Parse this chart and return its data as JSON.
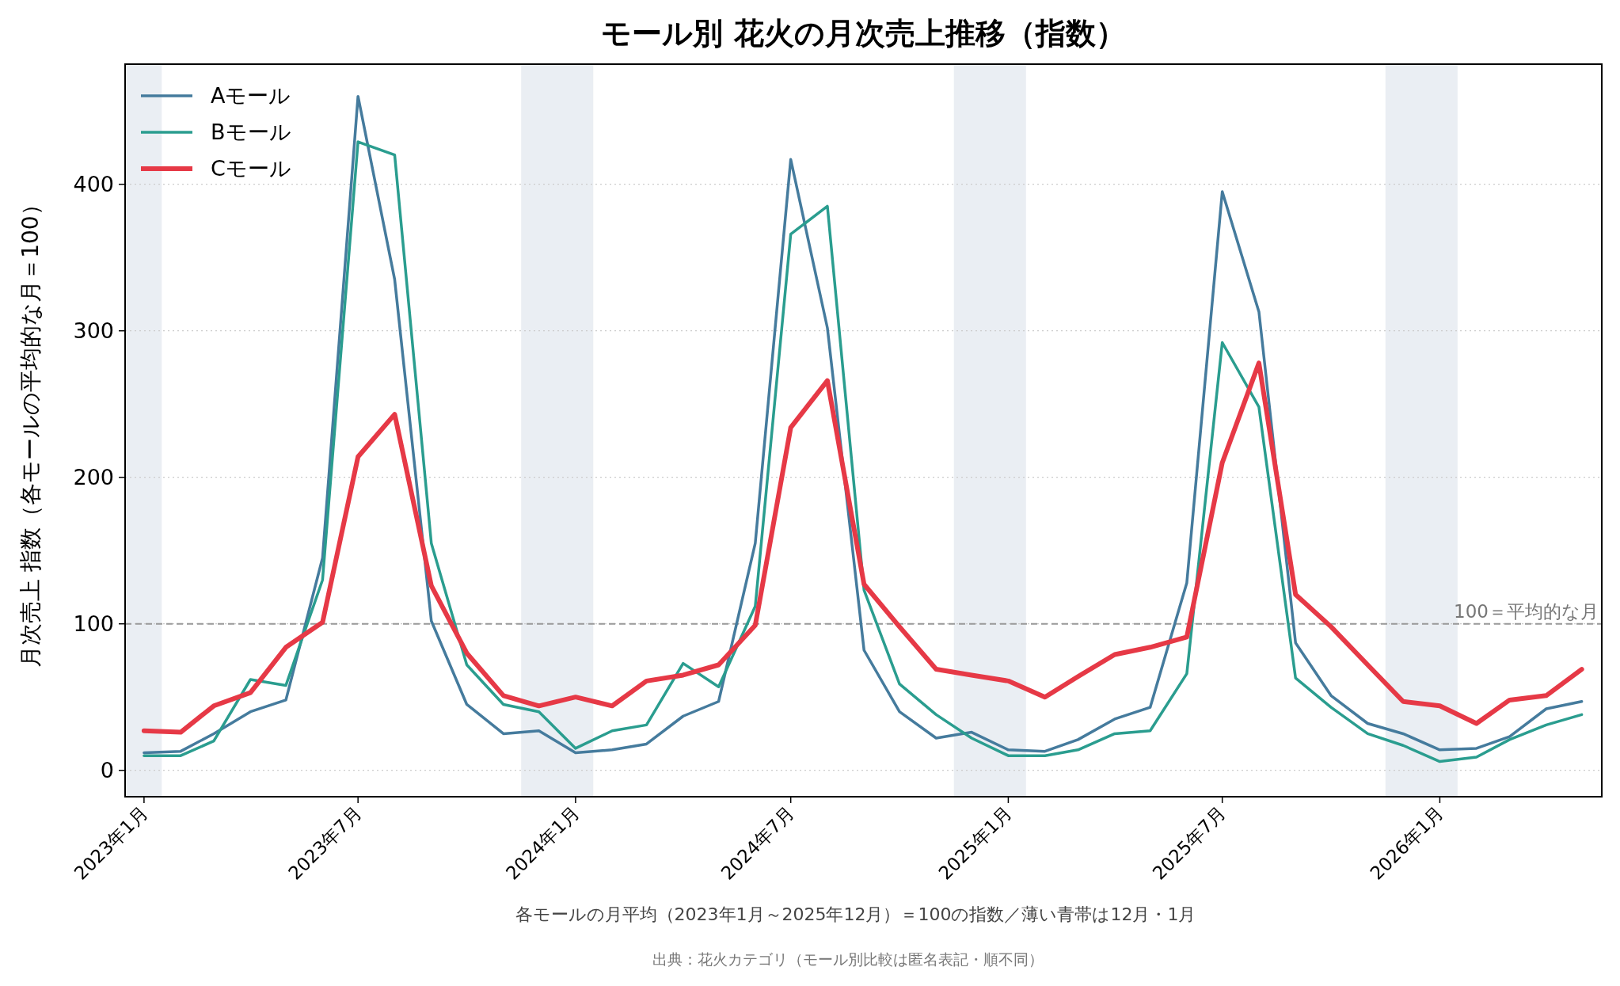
{
  "chart_data": {
    "type": "line",
    "title": "モール別 花火の月次売上推移（指数）",
    "ylabel": "月次売上 指数（各モールの平均的な月＝100）",
    "x": [
      "2023-01",
      "2023-02",
      "2023-03",
      "2023-04",
      "2023-05",
      "2023-06",
      "2023-07",
      "2023-08",
      "2023-09",
      "2023-10",
      "2023-11",
      "2023-12",
      "2024-01",
      "2024-02",
      "2024-03",
      "2024-04",
      "2024-05",
      "2024-06",
      "2024-07",
      "2024-08",
      "2024-09",
      "2024-10",
      "2024-11",
      "2024-12",
      "2025-01",
      "2025-02",
      "2025-03",
      "2025-04",
      "2025-05",
      "2025-06",
      "2025-07",
      "2025-08",
      "2025-09",
      "2025-10",
      "2025-11",
      "2025-12",
      "2026-01",
      "2026-02",
      "2026-03",
      "2026-04",
      "2026-05"
    ],
    "series": [
      {
        "name": "Aモール",
        "color": "#457b9d",
        "values": [
          12,
          13,
          25,
          40,
          48,
          145,
          460,
          335,
          102,
          45,
          25,
          27,
          12,
          14,
          18,
          37,
          47,
          155,
          417,
          302,
          82,
          40,
          22,
          26,
          14,
          13,
          21,
          35,
          43,
          128,
          395,
          313,
          87,
          51,
          32,
          25,
          14,
          15,
          23,
          42,
          47
        ]
      },
      {
        "name": "Bモール",
        "color": "#2a9d8f",
        "values": [
          10,
          10,
          20,
          62,
          58,
          130,
          429,
          420,
          155,
          72,
          45,
          40,
          15,
          27,
          31,
          73,
          57,
          112,
          366,
          385,
          123,
          59,
          38,
          22,
          10,
          10,
          14,
          25,
          27,
          66,
          292,
          248,
          63,
          43,
          25,
          17,
          6,
          9,
          21,
          31,
          38
        ]
      },
      {
        "name": "Cモール",
        "color": "#e63946",
        "values": [
          27,
          26,
          44,
          53,
          84,
          101,
          214,
          243,
          126,
          80,
          51,
          44,
          50,
          44,
          61,
          65,
          72,
          99,
          234,
          266,
          127,
          98,
          69,
          65,
          61,
          50,
          64,
          79,
          84,
          91,
          210,
          278,
          120,
          98,
          72,
          47,
          44,
          32,
          48,
          51,
          69
        ]
      }
    ],
    "xlim": [
      "2022-12-16",
      "2026-05-18"
    ],
    "xticks": [
      {
        "value": "2023-01",
        "label": "2023年1月"
      },
      {
        "value": "2023-07",
        "label": "2023年7月"
      },
      {
        "value": "2024-01",
        "label": "2024年1月"
      },
      {
        "value": "2024-07",
        "label": "2024年7月"
      },
      {
        "value": "2025-01",
        "label": "2025年1月"
      },
      {
        "value": "2025-07",
        "label": "2025年7月"
      },
      {
        "value": "2026-01",
        "label": "2026年1月"
      }
    ],
    "ylim": [
      -18,
      482
    ],
    "yticks": [
      0,
      100,
      200,
      300,
      400
    ],
    "grid": "y",
    "legend": "top left",
    "line_style": "solid",
    "ref_lines": [
      {
        "axis": "y",
        "value": 100,
        "label": "100＝平均的な月",
        "color": "#999999",
        "line_style": "dashed"
      }
    ],
    "bands": [
      {
        "axis": "x",
        "from": "2022-11-16",
        "to": "2023-01-16",
        "color": "#eaeef3"
      },
      {
        "axis": "x",
        "from": "2023-11-16",
        "to": "2024-01-16",
        "color": "#eaeef3"
      },
      {
        "axis": "x",
        "from": "2024-11-16",
        "to": "2025-01-16",
        "color": "#eaeef3"
      },
      {
        "axis": "x",
        "from": "2025-11-16",
        "to": "2026-01-16",
        "color": "#eaeef3"
      }
    ],
    "annotations": [
      "各モールの月平均（2023年1月～2025年12月）＝100の指数／薄い青帯は12月・1月",
      "出典：花火カテゴリ（モール別比較は匿名表記・順不同）"
    ]
  }
}
